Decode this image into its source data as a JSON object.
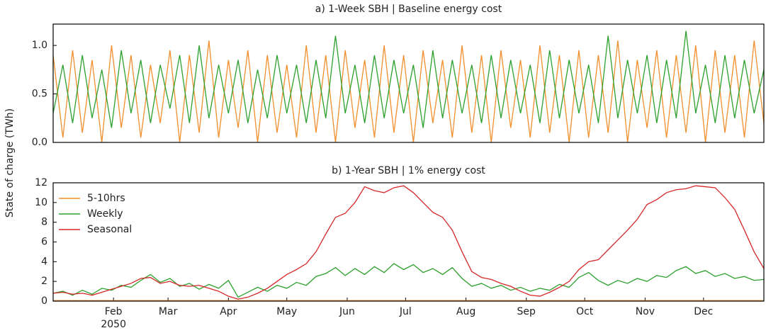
{
  "ylabel": "State of charge (TWh)",
  "chart_data": [
    {
      "type": "line",
      "title": "a) 1-Week SBH | Baseline energy cost",
      "x": [
        0,
        5,
        10,
        15,
        20,
        25,
        30,
        35,
        40,
        45,
        50,
        55,
        60,
        65,
        70,
        75,
        80,
        85,
        90,
        95,
        100,
        105,
        110,
        115,
        120,
        125,
        130,
        135,
        140,
        145,
        150,
        155,
        160,
        165,
        170,
        175,
        180,
        185,
        190,
        195,
        200,
        205,
        210,
        215,
        220,
        225,
        230,
        235,
        240,
        245,
        250,
        255,
        260,
        265,
        270,
        275,
        280,
        285,
        290,
        295,
        300,
        305,
        310,
        315,
        320,
        325,
        330,
        335,
        340,
        345,
        350,
        355,
        360,
        365
      ],
      "xlim": [
        0,
        365
      ],
      "ylim": [
        0,
        1.22
      ],
      "yticks": [
        {
          "value": 0,
          "label": "0.0"
        },
        0.5,
        {
          "value": 1,
          "label": "1.0"
        }
      ],
      "series": [
        {
          "color": "#f28e2b",
          "values": [
            0.9,
            0.05,
            0.95,
            0.1,
            0.85,
            0.0,
            1.0,
            0.15,
            0.9,
            0.05,
            0.8,
            0.2,
            0.95,
            0.0,
            0.9,
            0.1,
            1.05,
            0.05,
            0.85,
            0.15,
            0.95,
            0.0,
            0.9,
            0.1,
            0.8,
            0.05,
            1.0,
            0.1,
            0.9,
            0.0,
            0.95,
            0.15,
            0.85,
            0.05,
            1.0,
            0.1,
            0.9,
            0.0,
            0.95,
            0.2,
            0.85,
            0.05,
            1.0,
            0.1,
            0.9,
            0.0,
            0.95,
            0.15,
            0.85,
            0.05,
            1.0,
            0.1,
            0.9,
            0.0,
            0.95,
            0.05,
            0.9,
            0.1,
            1.05,
            0.0,
            0.85,
            0.15,
            0.95,
            0.05,
            0.9,
            0.1,
            1.0,
            0.0,
            0.95,
            0.1,
            0.9,
            0.05,
            1.05,
            0.2
          ]
        },
        {
          "color": "#2ca02c",
          "values": [
            0.3,
            0.8,
            0.2,
            0.9,
            0.25,
            0.75,
            0.15,
            0.95,
            0.3,
            0.85,
            0.2,
            0.8,
            0.35,
            0.9,
            0.2,
            1.0,
            0.25,
            0.8,
            0.3,
            0.85,
            0.2,
            0.75,
            0.25,
            0.9,
            0.3,
            0.8,
            0.2,
            0.85,
            0.25,
            1.1,
            0.3,
            0.8,
            0.2,
            0.9,
            0.25,
            0.85,
            0.3,
            0.8,
            0.15,
            0.95,
            0.25,
            0.85,
            0.3,
            0.8,
            0.2,
            0.9,
            0.25,
            0.85,
            0.3,
            0.8,
            0.2,
            0.95,
            0.25,
            0.85,
            0.3,
            0.8,
            0.2,
            1.1,
            0.25,
            0.85,
            0.3,
            0.9,
            0.2,
            0.85,
            0.25,
            1.15,
            0.3,
            0.8,
            0.2,
            0.9,
            0.25,
            0.85,
            0.3,
            0.75
          ]
        }
      ]
    },
    {
      "type": "line",
      "title": "b) 1-Year SBH | 1% energy cost",
      "x": [
        0,
        5,
        10,
        15,
        20,
        25,
        30,
        35,
        40,
        45,
        50,
        55,
        60,
        65,
        70,
        75,
        80,
        85,
        90,
        95,
        100,
        105,
        110,
        115,
        120,
        125,
        130,
        135,
        140,
        145,
        150,
        155,
        160,
        165,
        170,
        175,
        180,
        185,
        190,
        195,
        200,
        205,
        210,
        215,
        220,
        225,
        230,
        235,
        240,
        245,
        250,
        255,
        260,
        265,
        270,
        275,
        280,
        285,
        290,
        295,
        300,
        305,
        310,
        315,
        320,
        325,
        330,
        335,
        340,
        345,
        350,
        355,
        360,
        365
      ],
      "xlim": [
        0,
        365
      ],
      "xticks": [
        {
          "value": 31,
          "label": "Feb"
        },
        {
          "value": 59,
          "label": "Mar"
        },
        {
          "value": 90,
          "label": "Apr"
        },
        {
          "value": 120,
          "label": "May"
        },
        {
          "value": 151,
          "label": "Jun"
        },
        {
          "value": 181,
          "label": "Jul"
        },
        {
          "value": 212,
          "label": "Aug"
        },
        {
          "value": 243,
          "label": "Sep"
        },
        {
          "value": 273,
          "label": "Oct"
        },
        {
          "value": 304,
          "label": "Nov"
        },
        {
          "value": 334,
          "label": "Dec"
        }
      ],
      "x_year_label": "2050",
      "ylim": [
        0,
        12
      ],
      "yticks": [
        0,
        2,
        4,
        6,
        8,
        10,
        12
      ],
      "legend": "upper left",
      "series": [
        {
          "name": "5-10hrs",
          "color": "#f28e2b",
          "values": [
            0.05,
            0.05,
            0.05,
            0.05,
            0.05,
            0.05,
            0.05,
            0.05,
            0.05,
            0.05,
            0.05,
            0.05,
            0.05,
            0.05,
            0.05,
            0.05,
            0.05,
            0.05,
            0.05,
            0.05,
            0.05,
            0.05,
            0.05,
            0.05,
            0.05,
            0.05,
            0.05,
            0.05,
            0.05,
            0.05,
            0.05,
            0.05,
            0.05,
            0.05,
            0.05,
            0.05,
            0.05,
            0.05,
            0.05,
            0.05,
            0.05,
            0.05,
            0.05,
            0.05,
            0.05,
            0.05,
            0.05,
            0.05,
            0.05,
            0.05,
            0.05,
            0.05,
            0.05,
            0.05,
            0.05,
            0.05,
            0.05,
            0.05,
            0.05,
            0.05,
            0.05,
            0.05,
            0.05,
            0.05,
            0.05,
            0.05,
            0.05,
            0.05,
            0.05,
            0.05,
            0.05,
            0.05,
            0.05,
            0.05
          ]
        },
        {
          "name": "Weekly",
          "color": "#2ca02c",
          "values": [
            0.8,
            1.0,
            0.6,
            1.1,
            0.7,
            1.3,
            1.1,
            1.6,
            1.4,
            2.1,
            2.7,
            1.9,
            2.3,
            1.5,
            1.8,
            1.2,
            1.7,
            1.3,
            2.1,
            0.4,
            0.9,
            1.4,
            1.0,
            1.6,
            1.3,
            1.9,
            1.6,
            2.5,
            2.8,
            3.4,
            2.6,
            3.3,
            2.7,
            3.5,
            2.9,
            3.8,
            3.2,
            3.7,
            2.9,
            3.3,
            2.7,
            3.4,
            2.3,
            1.5,
            1.8,
            1.3,
            1.6,
            1.1,
            1.4,
            1.0,
            1.3,
            1.1,
            1.7,
            1.4,
            2.4,
            2.9,
            2.1,
            1.6,
            2.1,
            1.8,
            2.3,
            2.0,
            2.6,
            2.4,
            3.1,
            3.5,
            2.8,
            3.1,
            2.5,
            2.8,
            2.3,
            2.5,
            2.1,
            2.2
          ]
        },
        {
          "name": "Seasonal",
          "color": "#d62728",
          "values": [
            0.8,
            0.9,
            0.7,
            0.8,
            0.6,
            0.9,
            1.2,
            1.5,
            1.8,
            2.3,
            2.4,
            1.8,
            2.0,
            1.6,
            1.5,
            1.6,
            1.3,
            1.0,
            0.5,
            0.2,
            0.4,
            0.8,
            1.3,
            2.0,
            2.7,
            3.2,
            3.8,
            5.0,
            6.8,
            8.5,
            8.9,
            10.0,
            11.6,
            11.2,
            11.0,
            11.5,
            11.7,
            11.0,
            10.0,
            9.0,
            8.5,
            7.2,
            5.0,
            3.0,
            2.4,
            2.2,
            1.8,
            1.5,
            1.0,
            0.6,
            0.5,
            0.9,
            1.4,
            2.0,
            3.2,
            4.0,
            4.2,
            5.2,
            6.2,
            7.2,
            8.3,
            9.8,
            10.3,
            11.0,
            11.3,
            11.4,
            11.7,
            11.6,
            11.5,
            10.5,
            9.3,
            7.2,
            5.0,
            3.3
          ]
        }
      ]
    }
  ]
}
